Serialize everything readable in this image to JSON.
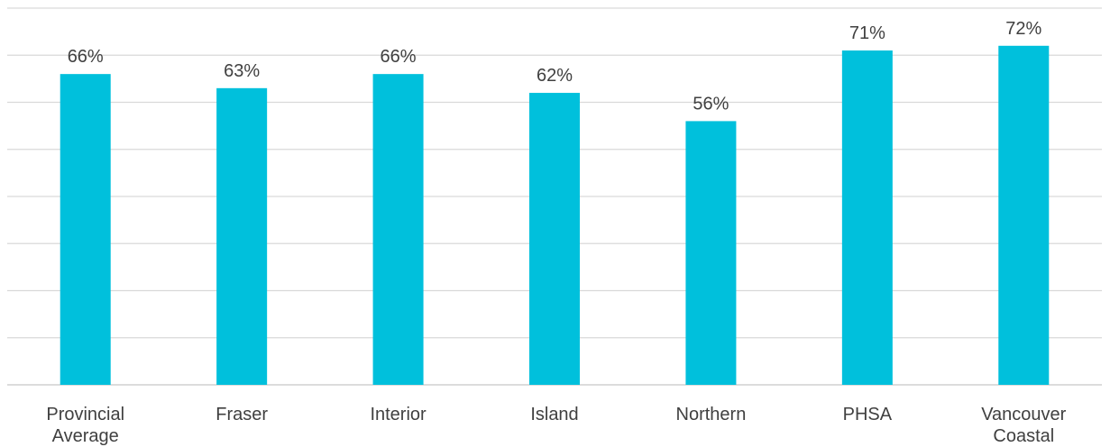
{
  "chart_data": {
    "type": "bar",
    "categories": [
      [
        "Provincial",
        "Average"
      ],
      [
        "Fraser"
      ],
      [
        "Interior"
      ],
      [
        "Island"
      ],
      [
        "Northern"
      ],
      [
        "PHSA"
      ],
      [
        "Vancouver",
        "Coastal"
      ]
    ],
    "values": [
      66,
      63,
      66,
      62,
      56,
      71,
      72
    ],
    "data_labels": [
      "66%",
      "63%",
      "66%",
      "62%",
      "56%",
      "71%",
      "72%"
    ],
    "title": "",
    "xlabel": "",
    "ylabel": "",
    "ylim": [
      0,
      80
    ],
    "y_grid_step": 10,
    "grid": true,
    "legend": "none",
    "bar_color": "#00c0dc",
    "grid_color": "#d9d9d9"
  }
}
